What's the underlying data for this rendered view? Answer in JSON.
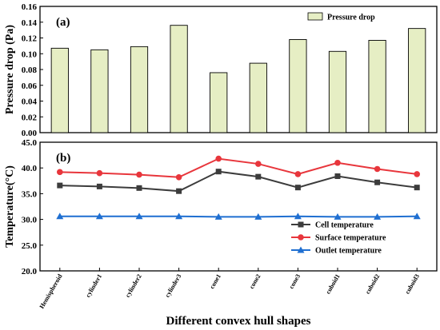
{
  "chart_data": [
    {
      "type": "bar",
      "panel_label": "(a)",
      "categories": [
        "Hemispheroid",
        "cylinder1",
        "cylinder2",
        "cylinder3",
        "cone1",
        "cone2",
        "cone3",
        "cuboid1",
        "cuboid2",
        "cuboid3"
      ],
      "series": [
        {
          "name": "Pressure drop",
          "values": [
            0.107,
            0.105,
            0.109,
            0.136,
            0.076,
            0.088,
            0.118,
            0.103,
            0.117,
            0.132
          ]
        }
      ],
      "ylabel": "Pressure drop (Pa)",
      "ylim": [
        0,
        0.16
      ],
      "yticks": [
        "0.00",
        "0.02",
        "0.04",
        "0.06",
        "0.08",
        "0.10",
        "0.12",
        "0.14",
        "0.16"
      ],
      "bar_color": "#e6eec4",
      "legend_position": "top-right",
      "grid": false
    },
    {
      "type": "line",
      "panel_label": "(b)",
      "categories": [
        "Hemispheroid",
        "cylinder1",
        "cylinder2",
        "cylinder3",
        "cone1",
        "cone2",
        "cone3",
        "cuboid1",
        "cuboid2",
        "cuboid3"
      ],
      "series": [
        {
          "name": "Cell temperature",
          "color": "#3c3c3c",
          "marker": "square",
          "values": [
            36.6,
            36.4,
            36.1,
            35.5,
            39.3,
            38.3,
            36.2,
            38.4,
            37.2,
            36.2
          ]
        },
        {
          "name": "Surface temperature",
          "color": "#e8363c",
          "marker": "circle",
          "values": [
            39.2,
            39.0,
            38.7,
            38.2,
            41.8,
            40.8,
            38.8,
            41.0,
            39.8,
            38.8
          ]
        },
        {
          "name": "Outlet temperature",
          "color": "#1f6fd1",
          "marker": "triangle",
          "values": [
            30.6,
            30.6,
            30.6,
            30.6,
            30.5,
            30.5,
            30.6,
            30.5,
            30.5,
            30.6
          ]
        }
      ],
      "ylabel": "Temperature(°C)",
      "xlabel": "Different convex hull shapes",
      "ylim": [
        20,
        45
      ],
      "yticks": [
        "20.0",
        "25.0",
        "30.0",
        "35.0",
        "40.0",
        "45.0"
      ],
      "legend_position": "bottom-right",
      "grid": false
    }
  ]
}
